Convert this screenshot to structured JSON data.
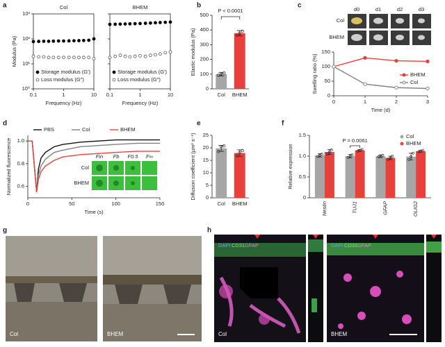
{
  "panel_letters": [
    "a",
    "b",
    "c",
    "d",
    "e",
    "f",
    "g",
    "h"
  ],
  "chart_data": [
    {
      "type": "scatter",
      "title": "Col",
      "xlabel": "Frequency (Hz)",
      "ylabel": "Modulus (Pa)",
      "xscale": "log",
      "yscale": "log",
      "frame": true,
      "x": [
        0.1,
        0.15,
        0.22,
        0.32,
        0.46,
        0.68,
        1,
        1.5,
        2.2,
        3.2,
        4.6,
        6.8,
        10
      ],
      "xlim": [
        0.1,
        10
      ],
      "xticks": [
        0.1,
        1,
        10
      ],
      "ylim": [
        1,
        1000
      ],
      "yticks": [
        {
          "value": 1,
          "label": "10⁰"
        },
        {
          "value": 10,
          "label": "10¹"
        },
        {
          "value": 100,
          "label": "10²"
        },
        {
          "value": 1000,
          "label": "10³"
        }
      ],
      "series": [
        {
          "name": "Storage modulus (G′)",
          "color": "#000000",
          "filled": true,
          "values": [
            78,
            79,
            80,
            80,
            81,
            82,
            82,
            83,
            84,
            85,
            86,
            88,
            100
          ]
        },
        {
          "name": "Loss modulus (G″)",
          "color": "#555555",
          "filled": false,
          "values": [
            20,
            19,
            19,
            18,
            18,
            18,
            18,
            18,
            18,
            18,
            18,
            18,
            16
          ]
        }
      ]
    },
    {
      "type": "scatter",
      "title": "BHEM",
      "xlabel": "Frequency (Hz)",
      "xscale": "log",
      "yscale": "log",
      "frame": true,
      "show_ytick_labels": false,
      "x": [
        0.1,
        0.15,
        0.22,
        0.32,
        0.46,
        0.68,
        1,
        1.5,
        2.2,
        3.2,
        4.6,
        6.8,
        10
      ],
      "xlim": [
        0.1,
        10
      ],
      "xticks": [
        0.1,
        1,
        10
      ],
      "ylim": [
        1,
        1000
      ],
      "yticks": [
        1,
        10,
        100,
        1000
      ],
      "series": [
        {
          "name": "Storage modulus (G′)",
          "color": "#000000",
          "filled": true,
          "values": [
            380,
            385,
            390,
            395,
            400,
            405,
            410,
            420,
            430,
            440,
            450,
            460,
            470
          ]
        },
        {
          "name": "Loss modulus (G″)",
          "color": "#555555",
          "filled": false,
          "values": [
            18,
            20,
            22,
            20,
            19,
            20,
            21,
            20,
            22,
            23,
            25,
            28,
            30
          ]
        }
      ]
    },
    {
      "type": "bar",
      "ylabel": "Elastic modulus (Pa)",
      "categories": [
        "Col",
        "BHEM"
      ],
      "values": [
        100,
        378
      ],
      "errors": [
        12,
        18
      ],
      "points": [
        [
          92,
          100,
          108
        ],
        [
          365,
          378,
          392
        ]
      ],
      "colors": [
        "#a6a6a6",
        "#e8413c"
      ],
      "ylim": [
        0,
        500
      ],
      "yticks": [
        0,
        100,
        200,
        300,
        400,
        500
      ],
      "annotation": "P < 0.0001"
    },
    {
      "type": "line",
      "xlabel": "Time (d)",
      "ylabel": "Swelling ratio (%)",
      "x": [
        0,
        1,
        2,
        3
      ],
      "xlim": [
        0,
        3
      ],
      "xticks": [
        0,
        1,
        2,
        3
      ],
      "ylim": [
        0,
        150
      ],
      "yticks": [
        0,
        50,
        100,
        150
      ],
      "legend": "lower right",
      "series": [
        {
          "name": "BHEM",
          "color": "#e8413c",
          "marker": "filled",
          "values": [
            100,
            130,
            120,
            118
          ]
        },
        {
          "name": "Col",
          "color": "#808080",
          "marker": "open",
          "values": [
            100,
            40,
            28,
            25
          ]
        }
      ],
      "image_columns": [
        "d0",
        "d1",
        "d2",
        "d3"
      ],
      "image_rows": [
        "Col",
        "BHEM"
      ]
    },
    {
      "type": "line",
      "xlabel": "Time (s)",
      "ylabel": "Normalized fluorescence",
      "x": [
        0,
        5,
        10,
        12,
        15,
        20,
        30,
        40,
        60,
        80,
        100,
        125,
        150
      ],
      "xlim": [
        0,
        150
      ],
      "xticks": [
        0,
        50,
        100,
        150
      ],
      "ylim": [
        0.5,
        1.05
      ],
      "yticks": [
        0.6,
        0.8,
        {
          "value": 1,
          "label": "1.0"
        }
      ],
      "legend": "top",
      "series": [
        {
          "name": "PBS",
          "color": "#111111",
          "values": [
            1,
            1,
            0.55,
            0.75,
            0.85,
            0.9,
            0.95,
            0.97,
            0.99,
            1.0,
            1.01,
            1.01,
            1.01
          ]
        },
        {
          "name": "Col",
          "color": "#808080",
          "values": [
            1,
            1,
            0.55,
            0.7,
            0.78,
            0.84,
            0.9,
            0.92,
            0.95,
            0.96,
            0.97,
            0.98,
            0.98
          ]
        },
        {
          "name": "BHEM",
          "color": "#e8413c",
          "values": [
            1,
            1,
            0.55,
            0.66,
            0.73,
            0.78,
            0.83,
            0.86,
            0.88,
            0.89,
            0.9,
            0.91,
            0.91
          ]
        }
      ],
      "inset_columns": [
        "Fin",
        "Fb",
        "F0.5",
        "F∞"
      ],
      "inset_rows": [
        "Col",
        "BHEM"
      ]
    },
    {
      "type": "bar",
      "ylabel": "Diffusion coefficient (µm² s⁻¹)",
      "categories": [
        "Col",
        "BHEM"
      ],
      "values": [
        19.8,
        17.9
      ],
      "errors": [
        1.2,
        1.3
      ],
      "points": [
        [
          18.5,
          20.5,
          20.8
        ],
        [
          16.8,
          18.2,
          18.9
        ]
      ],
      "colors": [
        "#a6a6a6",
        "#e8413c"
      ],
      "ylim": [
        0,
        25
      ],
      "yticks": [
        0,
        5,
        10,
        15,
        20,
        25
      ]
    },
    {
      "type": "grouped_bar",
      "ylabel": "Relative expression",
      "categories": [
        "Nestin",
        "TUJ1",
        "GFAP",
        "OLIG2"
      ],
      "ylim": [
        0,
        1.5
      ],
      "yticks": [
        0,
        0.5,
        {
          "value": 1,
          "label": "1.0"
        },
        1.5
      ],
      "legend": "upper right",
      "annotation": "P = 0.0061",
      "series": [
        {
          "name": "Col",
          "color": "#a6a6a6",
          "values": [
            1.02,
            1.0,
            1.0,
            0.99
          ],
          "errors": [
            0.04,
            0.04,
            0.03,
            0.08
          ],
          "points": [
            [
              0.99,
              1.02,
              1.05
            ],
            [
              0.97,
              1.0,
              1.03
            ],
            [
              0.98,
              1.0,
              1.02
            ],
            [
              0.92,
              0.99,
              1.07
            ]
          ]
        },
        {
          "name": "BHEM",
          "color": "#e8413c",
          "values": [
            1.1,
            1.14,
            0.96,
            1.12
          ],
          "errors": [
            0.06,
            0.02,
            0.04,
            0.02
          ],
          "points": [
            [
              1.05,
              1.1,
              1.15
            ],
            [
              1.12,
              1.14,
              1.16
            ],
            [
              0.92,
              0.96,
              1.0
            ],
            [
              1.1,
              1.12,
              1.14
            ]
          ]
        }
      ]
    }
  ],
  "images": [
    {
      "labels": [
        "Col",
        "BHEM"
      ]
    },
    {
      "stains": [
        "DAPI",
        "CD31",
        "GFAP"
      ],
      "labels": [
        "Col",
        "BHEM"
      ]
    }
  ]
}
